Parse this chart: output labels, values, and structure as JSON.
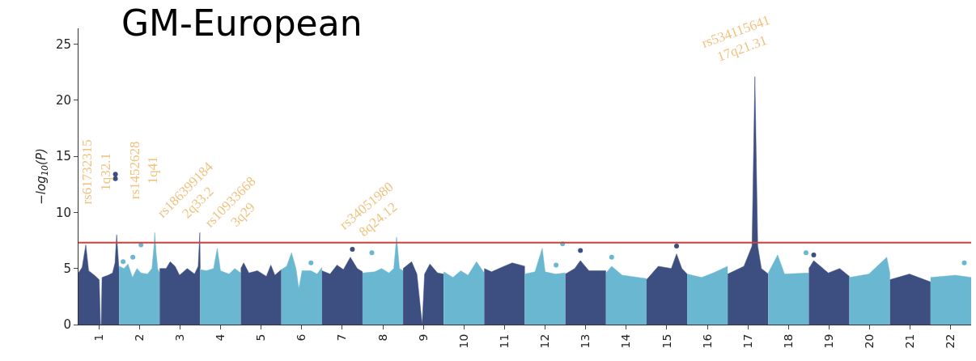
{
  "chart_data": {
    "type": "area",
    "title": "GM-European",
    "ylabel": "−log$_{10}$(P)",
    "xlim": [
      0.5,
      22.5
    ],
    "ylim": [
      0,
      26.4
    ],
    "xticks": [
      1,
      2,
      3,
      4,
      5,
      6,
      7,
      8,
      9,
      10,
      11,
      12,
      13,
      14,
      15,
      16,
      17,
      18,
      19,
      20,
      21,
      22
    ],
    "yticks": [
      0,
      5,
      10,
      15,
      20,
      25
    ],
    "series": [
      {
        "color": "#3d4f80",
        "x": [
          0.5,
          0.59,
          0.68,
          0.75,
          0.89,
          1.01,
          1.04,
          1.06,
          1.08,
          1.23,
          1.34,
          1.4,
          1.44,
          1.49,
          1.5
        ],
        "values": [
          4.6,
          5.1,
          7.1,
          4.8,
          4.4,
          4.0,
          0,
          0,
          4.2,
          4.4,
          4.6,
          5.5,
          8.0,
          5.3,
          4.8
        ]
      },
      {
        "color": "#6ab7d1",
        "x": [
          1.5,
          1.62,
          1.72,
          1.83,
          1.94,
          2.04,
          2.2,
          2.31,
          2.36,
          2.38,
          2.41,
          2.45,
          2.5
        ],
        "values": [
          5.2,
          5.0,
          5.4,
          4.2,
          5.0,
          4.6,
          4.5,
          5.0,
          7.0,
          8.2,
          6.5,
          5.0,
          4.6
        ]
      },
      {
        "color": "#3d4f80",
        "x": [
          2.5,
          2.66,
          2.76,
          2.88,
          2.99,
          3.18,
          3.36,
          3.45,
          3.49,
          3.5
        ],
        "values": [
          5.0,
          5.0,
          5.6,
          5.2,
          4.4,
          5.0,
          4.5,
          5.2,
          8.2,
          5.0
        ]
      },
      {
        "color": "#6ab7d1",
        "x": [
          3.5,
          3.65,
          3.83,
          3.92,
          4.0,
          4.21,
          4.35,
          4.5
        ],
        "values": [
          4.9,
          4.8,
          5.0,
          6.8,
          4.8,
          4.5,
          5.0,
          4.6
        ]
      },
      {
        "color": "#3d4f80",
        "x": [
          4.5,
          4.57,
          4.7,
          4.91,
          5.13,
          5.24,
          5.34,
          5.5
        ],
        "values": [
          5.0,
          5.5,
          4.6,
          4.8,
          4.3,
          5.3,
          4.4,
          4.9
        ]
      },
      {
        "color": "#6ab7d1",
        "x": [
          5.5,
          5.63,
          5.75,
          5.86,
          5.93,
          6.01,
          6.23,
          6.38,
          6.5
        ],
        "values": [
          4.9,
          5.2,
          6.4,
          5.0,
          3.2,
          4.8,
          4.8,
          4.5,
          5.1
        ]
      },
      {
        "color": "#3d4f80",
        "x": [
          6.5,
          6.7,
          6.87,
          7.03,
          7.2,
          7.37,
          7.5
        ],
        "values": [
          4.8,
          4.5,
          5.3,
          4.9,
          6.0,
          5.0,
          4.7
        ]
      },
      {
        "color": "#6ab7d1",
        "x": [
          7.5,
          7.8,
          7.97,
          8.15,
          8.27,
          8.34,
          8.41,
          8.5
        ],
        "values": [
          4.6,
          4.7,
          5.0,
          4.6,
          5.0,
          7.8,
          5.0,
          4.8
        ]
      },
      {
        "color": "#3d4f80",
        "x": [
          8.5,
          8.71,
          8.84,
          8.97,
          9.03,
          9.16,
          9.35,
          9.5
        ],
        "values": [
          5.0,
          5.6,
          4.5,
          0,
          4.5,
          5.4,
          4.6,
          4.5
        ]
      },
      {
        "color": "#6ab7d1",
        "x": [
          9.5,
          9.73,
          9.92,
          10.1,
          10.31,
          10.5
        ],
        "values": [
          4.7,
          4.2,
          4.8,
          4.4,
          5.6,
          4.6
        ]
      },
      {
        "color": "#3d4f80",
        "x": [
          10.5,
          10.68,
          10.99,
          11.19,
          11.5
        ],
        "values": [
          5.0,
          4.7,
          5.2,
          5.5,
          5.2
        ]
      },
      {
        "color": "#6ab7d1",
        "x": [
          11.5,
          11.75,
          11.93,
          12.0,
          12.25,
          12.5
        ],
        "values": [
          4.5,
          4.7,
          6.8,
          4.7,
          4.5,
          4.6
        ]
      },
      {
        "color": "#3d4f80",
        "x": [
          12.5,
          12.73,
          12.87,
          13.08,
          13.5
        ],
        "values": [
          4.5,
          5.0,
          5.7,
          4.8,
          4.8
        ]
      },
      {
        "color": "#6ab7d1",
        "x": [
          13.5,
          13.64,
          13.9,
          14.5
        ],
        "values": [
          4.6,
          5.2,
          4.4,
          4.1
        ]
      },
      {
        "color": "#3d4f80",
        "x": [
          14.5,
          14.79,
          15.11,
          15.24,
          15.37,
          15.5
        ],
        "values": [
          4.0,
          5.2,
          5.0,
          6.3,
          5.0,
          4.5
        ]
      },
      {
        "color": "#6ab7d1",
        "x": [
          15.5,
          15.86,
          16.14,
          16.5
        ],
        "values": [
          4.5,
          4.2,
          4.6,
          5.2
        ]
      },
      {
        "color": "#3d4f80",
        "x": [
          16.5,
          16.9,
          17.1,
          17.17,
          17.24,
          17.33,
          17.5
        ],
        "values": [
          4.5,
          5.2,
          7.0,
          22.1,
          7.0,
          5.0,
          4.5
        ]
      },
      {
        "color": "#6ab7d1",
        "x": [
          17.5,
          17.73,
          17.9,
          18.5
        ],
        "values": [
          4.6,
          6.2,
          4.5,
          4.6
        ]
      },
      {
        "color": "#3d4f80",
        "x": [
          18.5,
          18.62,
          18.98,
          19.26,
          19.5
        ],
        "values": [
          5.0,
          5.7,
          4.6,
          5.0,
          4.3
        ]
      },
      {
        "color": "#6ab7d1",
        "x": [
          19.5,
          19.98,
          20.42,
          20.5
        ],
        "values": [
          4.2,
          4.5,
          6.0,
          4.5
        ]
      },
      {
        "color": "#3d4f80",
        "x": [
          20.5,
          20.98,
          21.5
        ],
        "values": [
          4.0,
          4.5,
          3.8
        ]
      },
      {
        "color": "#6ab7d1",
        "x": [
          21.5,
          22.11,
          22.5
        ],
        "values": [
          4.2,
          4.4,
          4.2
        ]
      },
      {
        "type": "scatter",
        "marker": "circle",
        "color": "#3d4f80",
        "x": [
          1.41,
          1.41,
          7.25,
          12.87,
          15.24,
          18.62
        ],
        "values": [
          13.4,
          13.0,
          6.7,
          6.6,
          7.0,
          6.2
        ]
      },
      {
        "type": "scatter",
        "marker": "circle",
        "color": "#6ab7d1",
        "x": [
          2.04,
          1.6,
          1.84,
          6.23,
          7.73,
          12.43,
          12.27,
          22.33,
          13.64,
          18.43
        ],
        "values": [
          7.1,
          5.6,
          6.0,
          5.5,
          6.4,
          7.2,
          5.3,
          5.5,
          6.0,
          6.4
        ]
      }
    ],
    "ref_lines": [
      {
        "axis": "y",
        "value": 7.3,
        "color": "#d43f3a"
      }
    ],
    "annotations": [
      {
        "text": "rs61732315\n1q32.1",
        "x": 0.68,
        "y": 7.1
      },
      {
        "text": "rs1452628\n1q41",
        "x": 1.44,
        "y": 8.0
      },
      {
        "text": "rs186399184\n2q33.2",
        "x": 2.38,
        "y": 8.2
      },
      {
        "text": "rs10933668\n3q29",
        "x": 3.49,
        "y": 8.2
      },
      {
        "text": "rs34051980\n8q24.12",
        "x": 8.34,
        "y": 7.8
      },
      {
        "text": "rs534115641\n17q21.31",
        "x": 17.17,
        "y": 22.1
      }
    ]
  }
}
